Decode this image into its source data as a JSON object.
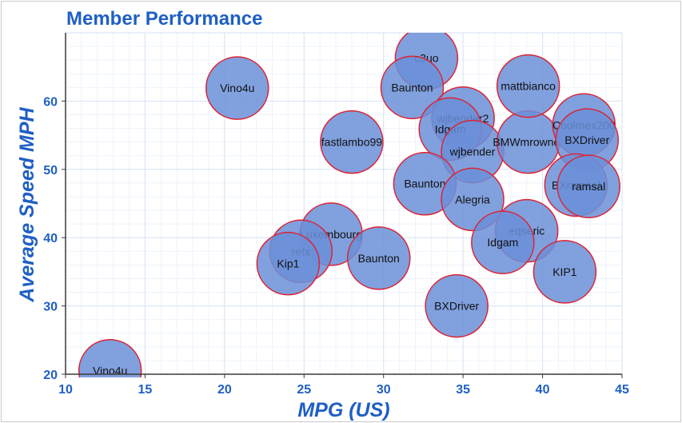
{
  "chart_data": {
    "type": "scatter",
    "variant": "bubble",
    "title": "Member Performance",
    "xlabel": "MPG (US)",
    "ylabel": "Average Speed MPH",
    "xlim": [
      10,
      45
    ],
    "ylim": [
      20,
      70
    ],
    "x_ticks": [
      10,
      15,
      20,
      25,
      30,
      35,
      40,
      45
    ],
    "y_ticks": [
      20,
      30,
      40,
      50,
      60
    ],
    "grid": true,
    "legend": "none",
    "bubble_fill": "#6b8fd8",
    "bubble_stroke": "#dd2233",
    "points": [
      {
        "label": "Vino4u",
        "x": 12.8,
        "y": 20.5
      },
      {
        "label": "Vino4u",
        "x": 20.8,
        "y": 61.9
      },
      {
        "label": "fastlambo99",
        "x": 28.0,
        "y": 54.0
      },
      {
        "label": "Luxembourg",
        "x": 26.7,
        "y": 40.5
      },
      {
        "label": "retx",
        "x": 24.8,
        "y": 38.0
      },
      {
        "label": "Kip1",
        "x": 24.0,
        "y": 36.2
      },
      {
        "label": "Baunton",
        "x": 29.7,
        "y": 37.0
      },
      {
        "label": "c3uo",
        "x": 32.7,
        "y": 66.3
      },
      {
        "label": "Baunton",
        "x": 31.8,
        "y": 62.0
      },
      {
        "label": "wjbender2",
        "x": 35.0,
        "y": 57.5
      },
      {
        "label": "Idgam",
        "x": 34.2,
        "y": 55.9
      },
      {
        "label": "wjbender",
        "x": 35.6,
        "y": 52.6
      },
      {
        "label": "BMWmrowner",
        "x": 39.1,
        "y": 54.0
      },
      {
        "label": "mattbianco",
        "x": 39.1,
        "y": 62.2
      },
      {
        "label": "Coolmex200",
        "x": 42.6,
        "y": 56.5
      },
      {
        "label": "BXDriver",
        "x": 42.8,
        "y": 54.3
      },
      {
        "label": "Baunton",
        "x": 32.6,
        "y": 47.9
      },
      {
        "label": "Alegria",
        "x": 35.6,
        "y": 45.6
      },
      {
        "label": "BXramsal",
        "x": 42.1,
        "y": 47.7
      },
      {
        "label": "ramsal",
        "x": 42.9,
        "y": 47.5
      },
      {
        "label": "eqseric",
        "x": 39.0,
        "y": 41.0
      },
      {
        "label": "Idgam",
        "x": 37.5,
        "y": 39.3
      },
      {
        "label": "KIP1",
        "x": 41.4,
        "y": 35.0
      },
      {
        "label": "BXDriver",
        "x": 34.6,
        "y": 30.0
      }
    ]
  }
}
